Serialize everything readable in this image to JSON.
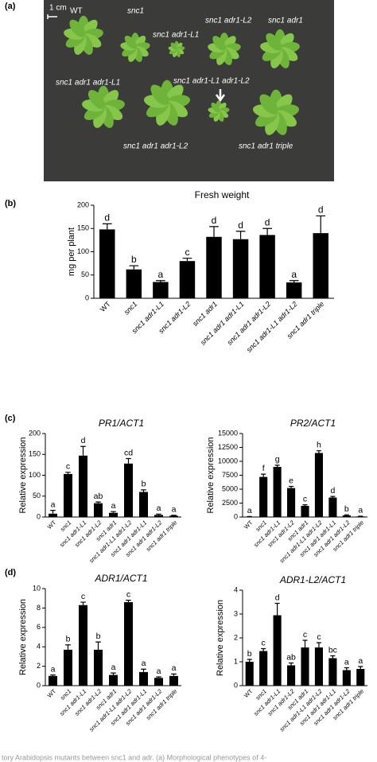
{
  "panel_labels": [
    "(a)",
    "(b)",
    "(c)",
    "(d)"
  ],
  "photo": {
    "scale": "1 cm",
    "labels": [
      "WT",
      "snc1",
      "snc1 adr1-L1",
      "snc1 adr1-L2",
      "snc1 adr1",
      "snc1 adr1 adr1-L1",
      "snc1 adr1-L1 adr1-L2",
      "snc1 adr1 adr1-L2",
      "snc1 adr1 triple"
    ]
  },
  "caption": "tory Arabidopsis mutants between snc1 and adr. (a) Morphological phenotypes of 4-",
  "chart_data": [
    {
      "type": "bar",
      "title": "Fresh weight",
      "ylabel": "mg per plant",
      "categories": [
        "WT",
        "snc1",
        "snc1 adr1-L1",
        "snc1 adr1-L2",
        "snc1 adr1",
        "snc1 adr1 adr1-L1",
        "snc1 adr1 adr1-L2",
        "snc1 adr1-L1 adr1-L2",
        "snc1 adr1 triple"
      ],
      "values": [
        148,
        62,
        35,
        80,
        132,
        127,
        136,
        34,
        140
      ],
      "errors": [
        12,
        8,
        3,
        6,
        22,
        17,
        14,
        4,
        37
      ],
      "annotations": [
        "d",
        "b",
        "a",
        "c",
        "d",
        "d",
        "d",
        "a",
        "d"
      ],
      "ylim": [
        0,
        200
      ],
      "yticks": [
        0,
        50,
        100,
        150,
        200
      ],
      "color": "#000000"
    },
    {
      "type": "bar",
      "title": "PR1/ACT1",
      "ylabel": "Relative expression",
      "categories": [
        "WT",
        "snc1",
        "snc1 adr1-L1",
        "snc1 adr1-L2",
        "snc1 adr1",
        "snc1 adr1-L1 adr1-L2",
        "snc1 adr1 adr1-L1",
        "snc1 adr1 adr1-L2",
        "snc1 adr1 triple"
      ],
      "values": [
        8,
        103,
        147,
        33,
        10,
        128,
        60,
        5,
        3
      ],
      "errors": [
        8,
        4,
        22,
        3,
        3,
        12,
        5,
        2,
        1
      ],
      "annotations": [
        "a",
        "c",
        "d",
        "ab",
        "a",
        "cd",
        "b",
        "a",
        "a"
      ],
      "ylim": [
        0,
        200
      ],
      "yticks": [
        0,
        50,
        100,
        150,
        200
      ],
      "color": "#000000"
    },
    {
      "type": "bar",
      "title": "PR2/ACT1",
      "ylabel": "Relative expression",
      "categories": [
        "WT",
        "snc1",
        "snc1 adr1-L1",
        "snc1 adr1-L2",
        "snc1 adr1",
        "snc1 adr1-L1 adr1-L2",
        "snc1 adr1 adr1-L1",
        "snc1 adr1 adr1-L2",
        "snc1 adr1 triple"
      ],
      "values": [
        50,
        7200,
        9000,
        5200,
        2000,
        11500,
        3500,
        300,
        100
      ],
      "errors": [
        50,
        500,
        300,
        300,
        200,
        400,
        200,
        100,
        50
      ],
      "annotations": [
        "a",
        "f",
        "g",
        "e",
        "c",
        "h",
        "d",
        "b",
        "a"
      ],
      "ylim": [
        0,
        15000
      ],
      "yticks": [
        0,
        2500,
        5000,
        7500,
        10000,
        12500,
        15000
      ],
      "color": "#000000"
    },
    {
      "type": "bar",
      "title": "ADR1/ACT1",
      "ylabel": "Relative expression",
      "categories": [
        "WT",
        "snc1",
        "snc1 adr1-L1",
        "snc1 adr1-L2",
        "snc1 adr1",
        "snc1 adr1-L1 adr1-L2",
        "snc1 adr1 adr1-L1",
        "snc1 adr1 adr1-L2",
        "snc1 adr1 triple"
      ],
      "values": [
        1.0,
        3.7,
        8.3,
        3.7,
        1.1,
        8.6,
        1.4,
        0.8,
        1.0
      ],
      "errors": [
        0.1,
        0.5,
        0.3,
        0.8,
        0.2,
        0.2,
        0.3,
        0.1,
        0.2
      ],
      "annotations": [
        "a",
        "b",
        "c",
        "b",
        "a",
        "c",
        "a",
        "a",
        "a"
      ],
      "ylim": [
        0,
        10
      ],
      "yticks": [
        0,
        2,
        4,
        6,
        8,
        10
      ],
      "color": "#000000"
    },
    {
      "type": "bar",
      "title": "ADR1-L2/ACT1",
      "ylabel": "Relative expression",
      "categories": [
        "WT",
        "snc1",
        "snc1 adr1-L1",
        "snc1 adr1-L2",
        "snc1 adr1",
        "snc1 adr1-L1 adr1-L2",
        "snc1 adr1 adr1-L1",
        "snc1 adr1 adr1-L2",
        "snc1 adr1 triple"
      ],
      "values": [
        1.0,
        1.45,
        2.95,
        0.85,
        1.6,
        1.6,
        1.15,
        0.65,
        0.7
      ],
      "errors": [
        0.1,
        0.1,
        0.5,
        0.1,
        0.3,
        0.2,
        0.1,
        0.1,
        0.1
      ],
      "annotations": [
        "b",
        "c",
        "d",
        "ab",
        "c",
        "c",
        "bc",
        "a",
        "a"
      ],
      "ylim": [
        0,
        4
      ],
      "yticks": [
        0,
        1,
        2,
        3,
        4
      ],
      "color": "#000000"
    }
  ]
}
